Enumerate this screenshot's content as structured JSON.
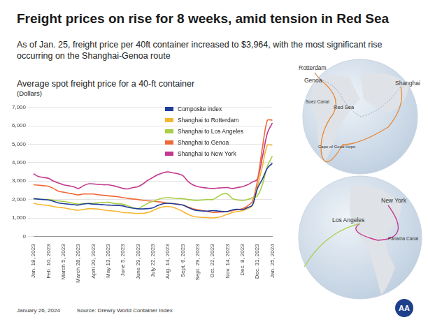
{
  "header": {
    "title": "Freight prices on rise for 8 weeks, amid tension in Red Sea",
    "subtitle": "As of Jan. 25,  freight price per 40ft container increased to $3,964, with the most significant rise occurring on the Shanghai-Genoa route"
  },
  "chart_data": {
    "type": "line",
    "title": "Average spot freight price for a 40-ft container",
    "y_label": "(Dollars)",
    "categories": [
      "Jan. 18, 2023",
      null,
      null,
      "Feb. 10, 2023",
      null,
      null,
      "March 5, 2023",
      null,
      null,
      "March 28, 2023",
      null,
      null,
      "April 20, 2023",
      null,
      null,
      "May 13, 2023",
      null,
      null,
      "June 5, 2023",
      null,
      null,
      "June 29, 2023",
      null,
      null,
      "July 22, 2023",
      null,
      null,
      "Aug. 14, 2023",
      null,
      null,
      "Sept. 6, 2023",
      null,
      null,
      "Sept. 29, 2023",
      null,
      null,
      "Oct. 22, 2023",
      null,
      null,
      "Nov. 14, 2023",
      null,
      null,
      "Dec. 8, 2023",
      null,
      null,
      "Dec. 31, 2023",
      null,
      null,
      "Jan. 25, 2024"
    ],
    "series": [
      {
        "name": "Composite index",
        "color": "#1f3d99",
        "values": [
          2050,
          2020,
          2000,
          1980,
          1900,
          1820,
          1780,
          1750,
          1720,
          1700,
          1760,
          1780,
          1750,
          1740,
          1720,
          1700,
          1690,
          1680,
          1650,
          1580,
          1530,
          1500,
          1490,
          1510,
          1550,
          1680,
          1770,
          1800,
          1780,
          1740,
          1700,
          1580,
          1460,
          1400,
          1380,
          1370,
          1400,
          1380,
          1350,
          1350,
          1440,
          1470,
          1450,
          1560,
          1700,
          2600,
          3100,
          3700,
          3964
        ]
      },
      {
        "name": "Shanghai to Rotterdam",
        "color": "#f5b731",
        "values": [
          1800,
          1740,
          1700,
          1680,
          1620,
          1580,
          1550,
          1500,
          1450,
          1420,
          1460,
          1500,
          1500,
          1480,
          1440,
          1400,
          1380,
          1350,
          1300,
          1280,
          1260,
          1250,
          1250,
          1300,
          1400,
          1520,
          1600,
          1620,
          1580,
          1480,
          1350,
          1200,
          1100,
          1050,
          1030,
          1020,
          1000,
          1030,
          1100,
          1200,
          1300,
          1350,
          1400,
          1500,
          1700,
          2700,
          3800,
          4950,
          4951
        ]
      },
      {
        "name": "Shanghai to Los Angeles",
        "color": "#a8cf45",
        "values": [
          2050,
          2030,
          2000,
          2000,
          1960,
          1920,
          1900,
          1850,
          1800,
          1750,
          1780,
          1800,
          1800,
          1820,
          1840,
          1850,
          1800,
          1770,
          1750,
          1650,
          1550,
          1500,
          1650,
          1800,
          1900,
          2000,
          2080,
          2100,
          2080,
          2060,
          2050,
          2000,
          1970,
          1950,
          1980,
          2000,
          2000,
          2150,
          2300,
          2300,
          2050,
          1980,
          1950,
          2000,
          2100,
          2200,
          2800,
          3800,
          4350
        ]
      },
      {
        "name": "Shanghai  to Genoa",
        "color": "#ef6a3a",
        "values": [
          2800,
          2780,
          2750,
          2720,
          2600,
          2450,
          2400,
          2350,
          2300,
          2250,
          2300,
          2300,
          2300,
          2260,
          2230,
          2200,
          2180,
          2150,
          2100,
          2060,
          2030,
          2000,
          1960,
          1930,
          1900,
          1880,
          1850,
          1800,
          1780,
          1750,
          1700,
          1600,
          1500,
          1450,
          1400,
          1350,
          1300,
          1310,
          1330,
          1350,
          1400,
          1450,
          1500,
          1650,
          1900,
          3000,
          4800,
          6300,
          6315
        ]
      },
      {
        "name": "Shanghai to New York",
        "color": "#c2398f",
        "values": [
          3400,
          3250,
          3200,
          3150,
          3000,
          2900,
          2800,
          2750,
          2700,
          2600,
          2750,
          2850,
          2850,
          2820,
          2800,
          2800,
          2750,
          2680,
          2600,
          2580,
          2650,
          2700,
          2850,
          3050,
          3200,
          3350,
          3450,
          3500,
          3450,
          3400,
          3300,
          3000,
          2800,
          2700,
          2650,
          2620,
          2600,
          2620,
          2640,
          2650,
          2600,
          2650,
          2700,
          2800,
          2950,
          3100,
          4300,
          5600,
          6150
        ]
      }
    ],
    "ylim": [
      0,
      7000
    ],
    "yticks": [
      0,
      {
        "value": 1000,
        "label": "1,000"
      },
      {
        "value": 2000,
        "label": "2,000"
      },
      {
        "value": 3000,
        "label": "3,000"
      },
      {
        "value": 4000,
        "label": "4,000"
      },
      {
        "value": 5000,
        "label": "5,000"
      },
      {
        "value": 6000,
        "label": "6,000"
      },
      {
        "value": 7000,
        "label": "7,000"
      }
    ],
    "grid": true,
    "legend": "top",
    "marker": "none"
  },
  "map": {
    "globes": [
      {
        "labels": [
          "Rotterdam",
          "Genoa",
          "Shanghai",
          "Suez Canal",
          "Red Sea",
          "Cape of Good Hope"
        ]
      },
      {
        "labels": [
          "New York",
          "Los Angeles",
          "Panama Canal"
        ]
      }
    ]
  },
  "footer": {
    "date": "January 26, 2024",
    "source": "Source: Drewry World Container Index",
    "logo": "AA"
  }
}
